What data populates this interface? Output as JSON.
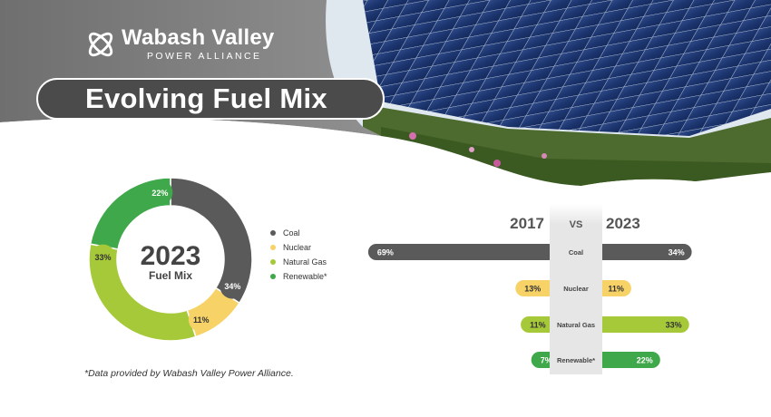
{
  "brand": {
    "name": "Wabash Valley",
    "subtitle": "POWER ALLIANCE"
  },
  "title": "Evolving Fuel Mix",
  "donut": {
    "center_year": "2023",
    "center_label": "Fuel Mix"
  },
  "legend": [
    {
      "label": "Coal",
      "color": "#5a5a5a"
    },
    {
      "label": "Nuclear",
      "color": "#f7d267"
    },
    {
      "label": "Natural Gas",
      "color": "#a6c93a"
    },
    {
      "label": "Renewable*",
      "color": "#3fa84a"
    }
  ],
  "comparison": {
    "left_year": "2017",
    "vs_label": "VS",
    "right_year": "2023"
  },
  "footnote": "*Data provided by Wabash Valley Power Alliance.",
  "chart_data": [
    {
      "type": "pie",
      "title": "2023 Fuel Mix",
      "categories": [
        "Coal",
        "Nuclear",
        "Natural Gas",
        "Renewable*"
      ],
      "values": [
        34,
        11,
        33,
        22
      ],
      "labels": [
        "34%",
        "11%",
        "33%",
        "22%"
      ],
      "colors": [
        "#5a5a5a",
        "#f7d267",
        "#a6c93a",
        "#3fa84a"
      ]
    },
    {
      "type": "bar",
      "title": "2017 vs 2023",
      "categories": [
        "Coal",
        "Nuclear",
        "Natural Gas",
        "Renewable*"
      ],
      "series": [
        {
          "name": "2017",
          "values": [
            69,
            13,
            11,
            7
          ],
          "labels": [
            "69%",
            "13%",
            "11%",
            "7%"
          ]
        },
        {
          "name": "2023",
          "values": [
            34,
            11,
            33,
            22
          ],
          "labels": [
            "34%",
            "11%",
            "33%",
            "22%"
          ]
        }
      ],
      "colors": [
        "#5a5a5a",
        "#f7d267",
        "#a6c93a",
        "#3fa84a"
      ]
    }
  ]
}
